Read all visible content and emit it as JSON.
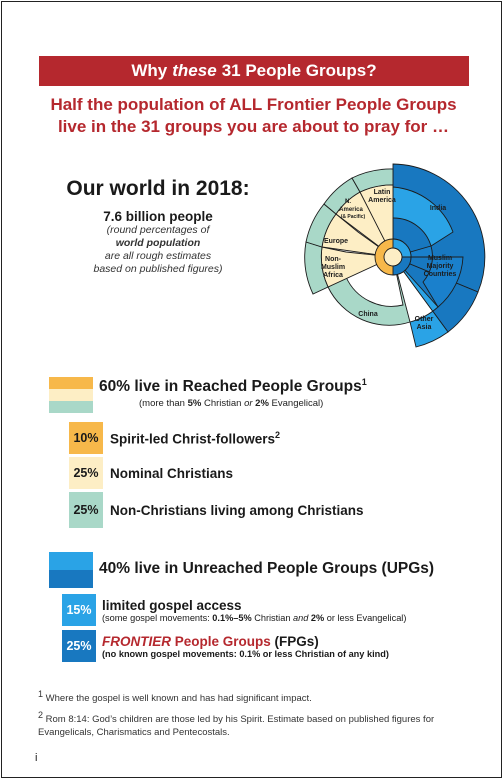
{
  "banner": {
    "pre": "Why",
    "em": "these",
    "post": "31 People Groups?"
  },
  "subtitle": {
    "line1": "Half the population of ALL Frontier People Groups",
    "line2": "live in the 31 groups you are about to pray for …"
  },
  "world": {
    "heading": "Our world in 2018:",
    "population": "7.6 billion people",
    "note1": "(round percentages of",
    "note2": "world population",
    "note3": "are all rough estimates",
    "note4": "based on published figures)"
  },
  "pie_labels": {
    "india": "India",
    "muslim1": "Muslim",
    "muslim2": "Majority",
    "muslim3": "Countries",
    "other1": "Other",
    "other2": "Asia",
    "china": "China",
    "nonmuslim1": "Non-",
    "nonmuslim2": "Muslim",
    "nonmuslim3": "Africa",
    "europe": "Europe",
    "latin1": "Latin",
    "latin2": "America",
    "na1": "N.",
    "na2": "America",
    "na3": "(& Pacific)"
  },
  "reached": {
    "heading": "60% live in Reached People Groups",
    "heading_sup": "1",
    "sub_a": "(more than ",
    "sub_b": "5%",
    "sub_c": " Christian ",
    "sub_d": "or",
    "sub_e": " 2%",
    "sub_f": " Evangelical)",
    "rows": [
      {
        "pct": "10%",
        "label": "Spirit-led Christ-followers",
        "sup": "2",
        "color": "#f7b84a"
      },
      {
        "pct": "25%",
        "label": "Nominal Christians",
        "sup": "",
        "color": "#fdeec5"
      },
      {
        "pct": "25%",
        "label": "Non-Christians living among Christians",
        "sup": "",
        "color": "#a9d8c8"
      }
    ]
  },
  "unreached": {
    "heading": "40% live in Unreached People Groups (UPGs)",
    "row1": {
      "pct": "15%",
      "label": "limited gospel access",
      "d1": "(some gospel movements: ",
      "d2": "0.1%–5%",
      "d3": " Christian ",
      "d4": "and",
      "d5": " 2%",
      "d6": " or less Evangelical)",
      "color": "#2aa3e6"
    },
    "row2": {
      "pct": "25%",
      "label_em": "FRONTIER",
      "label_mid": " People Groups",
      "label_end": " (FPGs)",
      "detail": "(no known gospel movements: 0.1% or less Christian of any kind)",
      "color": "#1878c0"
    }
  },
  "footnotes": {
    "f1_mark": "1",
    "f1": " Where the gospel is well known and has had significant impact.",
    "f2_mark": "2",
    "f2": " Rom 8:14: God’s children are those led by his Spirit. Estimate based on published figures for Evangelicals, Charismatics and Pentecostals."
  },
  "page_number": "i",
  "colors": {
    "accent": "#b5282e",
    "blue_dark": "#1878c0",
    "blue": "#2aa3e6",
    "orange": "#f7b84a",
    "cream": "#fdeec5",
    "teal": "#a9d8c8"
  }
}
